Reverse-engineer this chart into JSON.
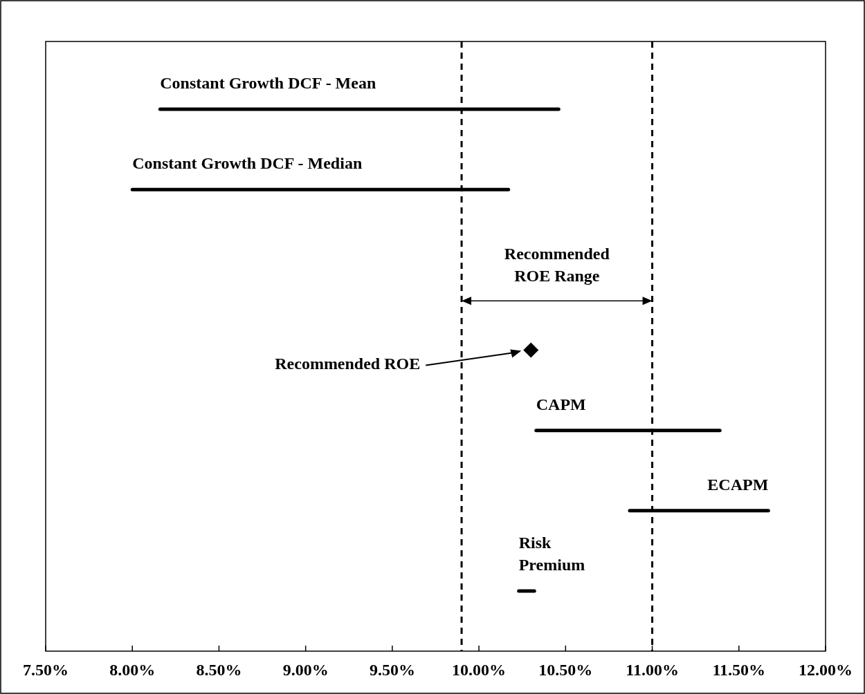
{
  "chart_data": {
    "type": "bar",
    "orientation": "horizontal",
    "categories": [
      "Constant Growth DCF - Mean",
      "Constant Growth DCF - Median",
      null,
      "Recommended ROE",
      "CAPM",
      "ECAPM",
      "Risk Premium"
    ],
    "series": [
      {
        "color": "#000000",
        "base": [
          8.16,
          8.0,
          null,
          null,
          10.33,
          10.87,
          10.23
        ],
        "values": [
          2.3,
          2.17,
          null,
          null,
          1.06,
          0.8,
          0.09
        ]
      },
      {
        "type": "scatter",
        "color": "#000000",
        "marker": "diamond",
        "values": [
          null,
          null,
          null,
          10.3,
          null,
          null,
          null
        ]
      }
    ],
    "xlim": [
      7.5,
      12.0
    ],
    "xticks": [
      {
        "value": 7.5,
        "label": "7.50%"
      },
      {
        "value": 8.0,
        "label": "8.00%"
      },
      {
        "value": 8.5,
        "label": "8.50%"
      },
      {
        "value": 9.0,
        "label": "9.00%"
      },
      {
        "value": 9.5,
        "label": "9.50%"
      },
      {
        "value": 10.0,
        "label": "10.00%"
      },
      {
        "value": 10.5,
        "label": "10.50%"
      },
      {
        "value": 11.0,
        "label": "11.00%"
      },
      {
        "value": 11.5,
        "label": "11.50%"
      },
      {
        "value": 12.0,
        "label": "12.00%"
      }
    ],
    "ref_lines": [
      {
        "axis": "x",
        "value": 9.9,
        "line_style": "dashed",
        "color": "#000000"
      },
      {
        "axis": "x",
        "value": 11.0,
        "line_style": "dashed",
        "color": "#000000"
      }
    ],
    "annotations": [
      "Recommended ROE Range"
    ]
  }
}
